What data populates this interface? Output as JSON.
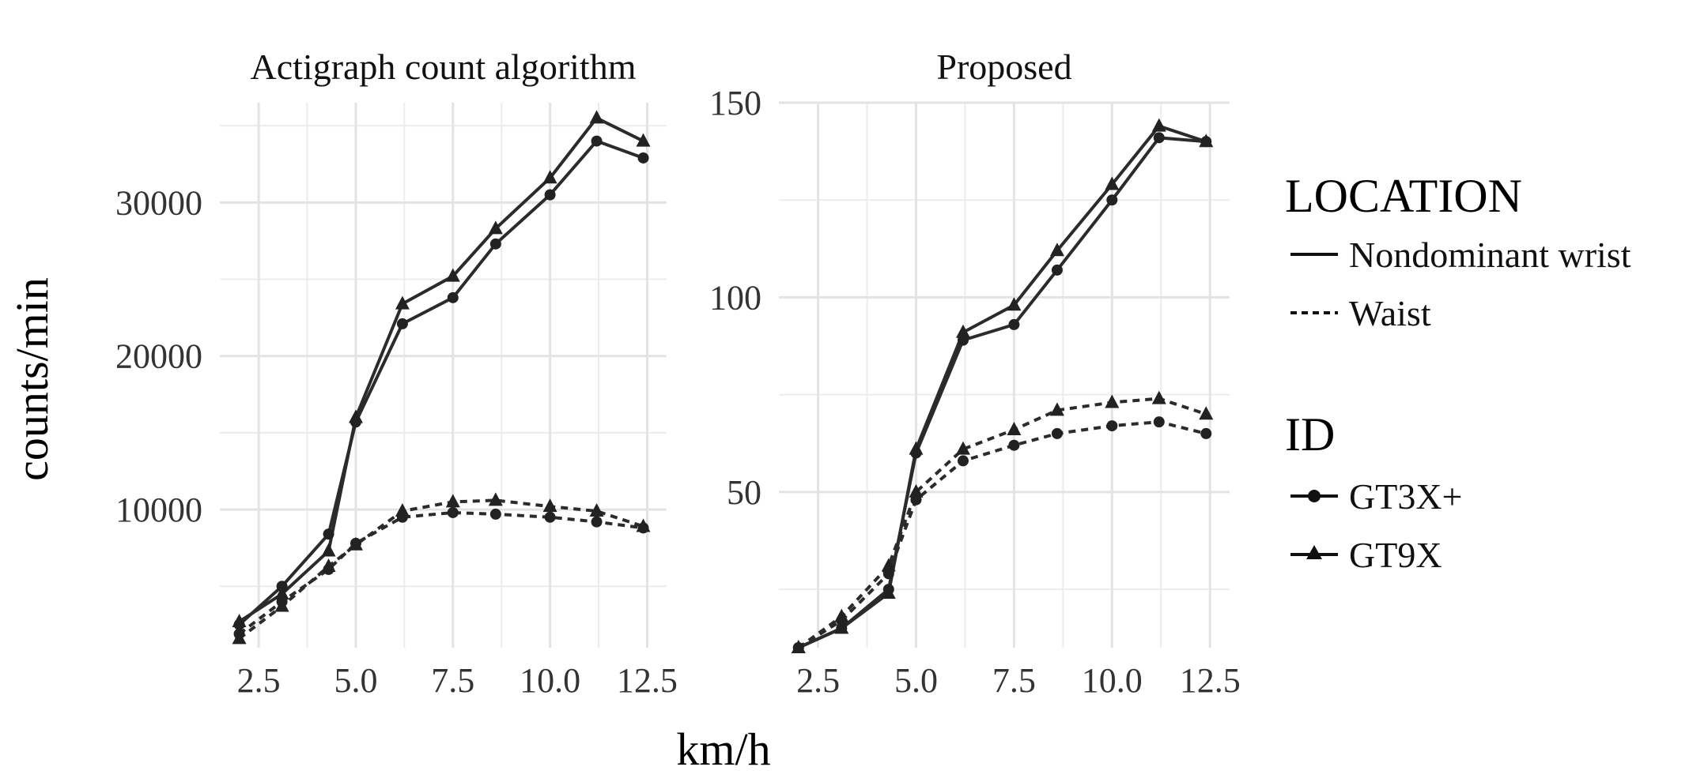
{
  "chart_data": {
    "type": "line",
    "xlabel": "km/h",
    "ylabel": "counts/min",
    "legend_placement": "right",
    "grid": true,
    "legends": [
      {
        "title": "LOCATION",
        "entries": [
          {
            "label": "Nondominant wrist",
            "linetype": "solid"
          },
          {
            "label": "Waist",
            "linetype": "dashed"
          }
        ]
      },
      {
        "title": "ID",
        "entries": [
          {
            "label": "GT3X+",
            "shape": "circle"
          },
          {
            "label": "GT9X",
            "shape": "triangle"
          }
        ]
      }
    ],
    "x": [
      2.0,
      3.1,
      4.3,
      5.0,
      6.2,
      7.5,
      8.6,
      10.0,
      11.2,
      12.4
    ],
    "panels": [
      {
        "title": "Actigraph count algorithm",
        "xlim": [
          1.5,
          13.0
        ],
        "ylim": [
          1000,
          36500
        ],
        "xticks": [
          "2.5",
          "5.0",
          "7.5",
          "10.0",
          "12.5"
        ],
        "xtick_values": [
          2.5,
          5.0,
          7.5,
          10.0,
          12.5
        ],
        "yticks": [
          "10000",
          "20000",
          "30000"
        ],
        "ytick_values": [
          10000,
          20000,
          30000
        ],
        "yminor_values": [
          5000,
          15000,
          25000,
          35000
        ],
        "series": [
          {
            "location": "Nondominant wrist",
            "id": "GT3X+",
            "values": [
              2500,
              5000,
              8400,
              15700,
              22100,
              23800,
              27300,
              30500,
              34000,
              32900
            ]
          },
          {
            "location": "Nondominant wrist",
            "id": "GT9X",
            "values": [
              2700,
              4500,
              7300,
              16000,
              23400,
              25200,
              28300,
              31600,
              35500,
              34000
            ]
          },
          {
            "location": "Waist",
            "id": "GT3X+",
            "values": [
              1900,
              4000,
              6100,
              7800,
              9500,
              9800,
              9700,
              9500,
              9200,
              8800
            ]
          },
          {
            "location": "Waist",
            "id": "GT9X",
            "values": [
              1600,
              3700,
              6300,
              7700,
              9900,
              10500,
              10600,
              10200,
              9900,
              8900
            ]
          }
        ]
      },
      {
        "title": "Proposed",
        "xlim": [
          1.5,
          13.0
        ],
        "ylim": [
          10,
          150
        ],
        "xticks": [
          "2.5",
          "5.0",
          "7.5",
          "10.0",
          "12.5"
        ],
        "xtick_values": [
          2.5,
          5.0,
          7.5,
          10.0,
          12.5
        ],
        "yticks": [
          "50",
          "100",
          "150"
        ],
        "ytick_values": [
          50,
          100,
          150
        ],
        "yminor_values": [
          25,
          75,
          125
        ],
        "series": [
          {
            "location": "Nondominant wrist",
            "id": "GT3X+",
            "values": [
              10,
              15,
              25,
              60,
              89,
              93,
              107,
              125,
              141,
              140
            ]
          },
          {
            "location": "Nondominant wrist",
            "id": "GT9X",
            "values": [
              10,
              15,
              24,
              61,
              91,
              98,
              112,
              129,
              144,
              140
            ]
          },
          {
            "location": "Waist",
            "id": "GT3X+",
            "values": [
              10,
              17,
              29,
              48,
              58,
              62,
              65,
              67,
              68,
              65
            ]
          },
          {
            "location": "Waist",
            "id": "GT9X",
            "values": [
              10,
              18,
              31,
              50,
              61,
              66,
              71,
              73,
              74,
              70
            ]
          }
        ]
      }
    ]
  }
}
